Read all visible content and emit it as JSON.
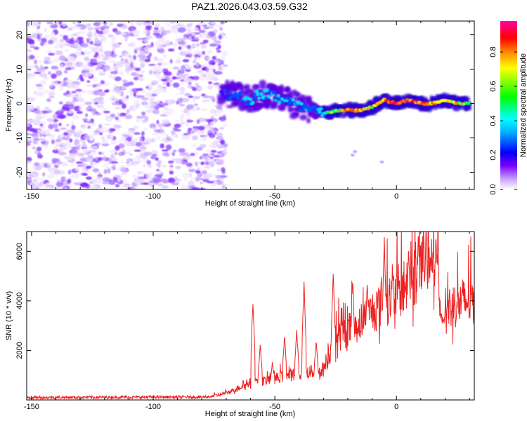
{
  "title": "PAZ1.2026.043.03.59.G32",
  "chart_data": [
    {
      "type": "heatmap",
      "name": "spectrogram",
      "xlabel": "Height of straight line (km)",
      "ylabel": "Frequency (Hz)",
      "xlim": [
        -152,
        32
      ],
      "ylim": [
        -25,
        24
      ],
      "xticks": [
        -150,
        -100,
        -50,
        0
      ],
      "yticks": [
        -20,
        -10,
        0,
        10,
        20
      ],
      "colorbar": {
        "label": "Normalized spectral amplitude",
        "range": [
          0,
          0.98
        ],
        "ticks": [
          0.0,
          0.2,
          0.4,
          0.6,
          0.8
        ],
        "tick_labels": [
          "0.0",
          "0.2",
          "0.4",
          "0.6",
          "0.8"
        ],
        "colormap": [
          "#ffffff",
          "#7a00ff",
          "#0000ff",
          "#00ffff",
          "#00ff00",
          "#ffff00",
          "#ff8000",
          "#ff0000",
          "#ff00a0"
        ]
      },
      "signal_track": {
        "description_x": [
          -72,
          -65,
          -60,
          -55,
          -50,
          -45,
          -40,
          -35,
          -30,
          -25,
          -20,
          -15,
          -10,
          -5,
          0,
          5,
          10,
          15,
          20,
          25,
          30
        ],
        "center_frequency_hz": [
          3,
          2,
          1,
          3,
          2,
          1,
          -1,
          -2,
          -3,
          -2,
          -2,
          -2,
          -1,
          1,
          0,
          1,
          0,
          0,
          1,
          0,
          0
        ],
        "peak_amplitude": [
          0.15,
          0.3,
          0.35,
          0.4,
          0.4,
          0.3,
          0.35,
          0.3,
          0.4,
          0.6,
          0.8,
          0.75,
          0.7,
          0.8,
          0.85,
          0.9,
          0.85,
          0.8,
          0.75,
          0.7,
          0.6
        ]
      },
      "noise_region_x": [
        -152,
        -72
      ]
    },
    {
      "type": "line",
      "name": "snr",
      "xlabel": "Height of straight line (km)",
      "ylabel": "SNR (10 * v/v)",
      "xlim": [
        -152,
        32
      ],
      "ylim": [
        0,
        6800
      ],
      "xticks": [
        -150,
        -100,
        -50,
        0
      ],
      "yticks": [
        2000,
        4000,
        6000
      ],
      "color": "#ee2222",
      "trend": {
        "x": [
          -152,
          -80,
          -75,
          -70,
          -65,
          -60,
          -55,
          -50,
          -45,
          -40,
          -35,
          -30,
          -25,
          -20,
          -15,
          -10,
          -5,
          0,
          5,
          10,
          15,
          17,
          18,
          20,
          25,
          32
        ],
        "y": [
          100,
          120,
          140,
          250,
          450,
          650,
          700,
          800,
          900,
          1000,
          1050,
          1150,
          2300,
          2600,
          2900,
          3300,
          3600,
          4000,
          4300,
          5000,
          5300,
          5200,
          3300,
          3400,
          3600,
          3750
        ]
      },
      "spikes": {
        "x": [
          -59,
          -56,
          -51,
          -46,
          -41,
          -38,
          -33,
          -26,
          -18,
          -12,
          -5,
          5,
          9,
          12,
          14
        ],
        "y": [
          3900,
          2200,
          1500,
          2600,
          2800,
          4700,
          2400,
          5150,
          4850,
          4800,
          6550,
          6250,
          6800,
          6100,
          5800
        ]
      }
    }
  ]
}
